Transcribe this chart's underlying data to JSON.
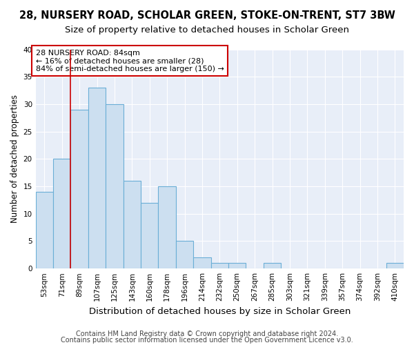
{
  "title": "28, NURSERY ROAD, SCHOLAR GREEN, STOKE-ON-TRENT, ST7 3BW",
  "subtitle": "Size of property relative to detached houses in Scholar Green",
  "xlabel": "Distribution of detached houses by size in Scholar Green",
  "ylabel": "Number of detached properties",
  "footer1": "Contains HM Land Registry data © Crown copyright and database right 2024.",
  "footer2": "Contains public sector information licensed under the Open Government Licence v3.0.",
  "bin_labels": [
    "53sqm",
    "71sqm",
    "89sqm",
    "107sqm",
    "125sqm",
    "143sqm",
    "160sqm",
    "178sqm",
    "196sqm",
    "214sqm",
    "232sqm",
    "250sqm",
    "267sqm",
    "285sqm",
    "303sqm",
    "321sqm",
    "339sqm",
    "357sqm",
    "374sqm",
    "392sqm",
    "410sqm"
  ],
  "bar_values": [
    14,
    20,
    29,
    33,
    30,
    16,
    12,
    15,
    5,
    2,
    1,
    1,
    0,
    1,
    0,
    0,
    0,
    0,
    0,
    0,
    1
  ],
  "bar_color": "#ccdff0",
  "bar_edgecolor": "#6aaed6",
  "bar_linewidth": 0.8,
  "red_line_x": 1.5,
  "red_line_color": "#cc0000",
  "annotation_text": "28 NURSERY ROAD: 84sqm\n← 16% of detached houses are smaller (28)\n84% of semi-detached houses are larger (150) →",
  "annotation_box_edgecolor": "#cc0000",
  "annotation_box_facecolor": "#ffffff",
  "ylim": [
    0,
    40
  ],
  "yticks": [
    0,
    5,
    10,
    15,
    20,
    25,
    30,
    35,
    40
  ],
  "figure_bg": "#ffffff",
  "axes_bg": "#e8eef8",
  "grid_color": "#ffffff",
  "title_fontsize": 10.5,
  "subtitle_fontsize": 9.5,
  "xlabel_fontsize": 9.5,
  "ylabel_fontsize": 8.5,
  "tick_fontsize": 7.5,
  "annotation_fontsize": 8,
  "footer_fontsize": 7
}
